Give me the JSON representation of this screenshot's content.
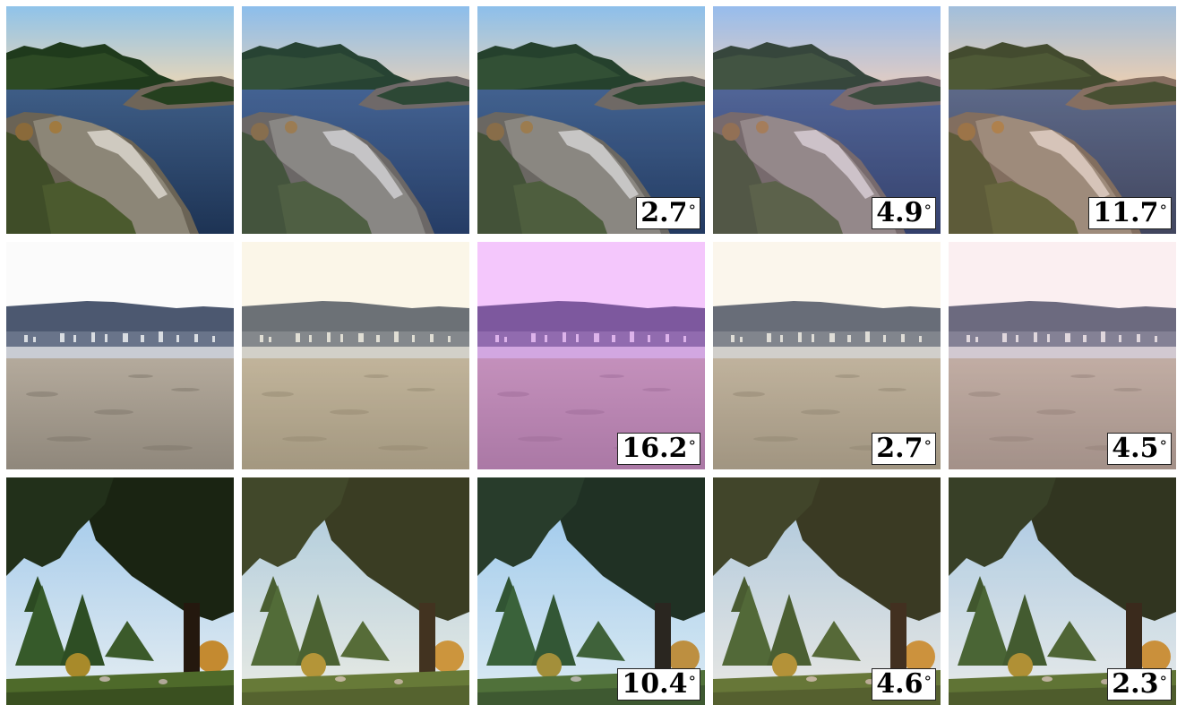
{
  "figure": {
    "rows": [
      {
        "scene": "coast-rocks",
        "tiles": [
          {
            "variant": "input",
            "error": null,
            "tint": "rgba(255,200,120,0.00)"
          },
          {
            "variant": "ground-truth",
            "error": null,
            "tint": "rgba(120,150,255,0.10)"
          },
          {
            "variant": "method-a",
            "error": "2.7",
            "tint": "rgba(120,150,255,0.08)"
          },
          {
            "variant": "method-b",
            "error": "4.9",
            "tint": "rgba(200,150,255,0.14)"
          },
          {
            "variant": "method-c",
            "error": "11.7",
            "tint": "rgba(255,170,150,0.16)"
          }
        ]
      },
      {
        "scene": "beach-city",
        "tiles": [
          {
            "variant": "input",
            "error": null,
            "tint": "rgba(255,255,255,0.00)"
          },
          {
            "variant": "ground-truth",
            "error": null,
            "tint": "rgba(255,230,150,0.18)"
          },
          {
            "variant": "method-a",
            "error": "16.2",
            "tint": "rgba(230,90,255,0.32)"
          },
          {
            "variant": "method-b",
            "error": "2.7",
            "tint": "rgba(255,225,160,0.16)"
          },
          {
            "variant": "method-c",
            "error": "4.5",
            "tint": "rgba(255,190,200,0.18)"
          }
        ]
      },
      {
        "scene": "park-tree",
        "tiles": [
          {
            "variant": "input",
            "error": null,
            "tint": "rgba(255,255,255,0.00)"
          },
          {
            "variant": "ground-truth",
            "error": null,
            "tint": "rgba(255,220,140,0.14)"
          },
          {
            "variant": "method-a",
            "error": "10.4",
            "tint": "rgba(120,200,255,0.08)"
          },
          {
            "variant": "method-b",
            "error": "4.6",
            "tint": "rgba(255,200,140,0.14)"
          },
          {
            "variant": "method-c",
            "error": "2.3",
            "tint": "rgba(255,210,160,0.10)"
          }
        ]
      }
    ],
    "degree_symbol": "°"
  }
}
